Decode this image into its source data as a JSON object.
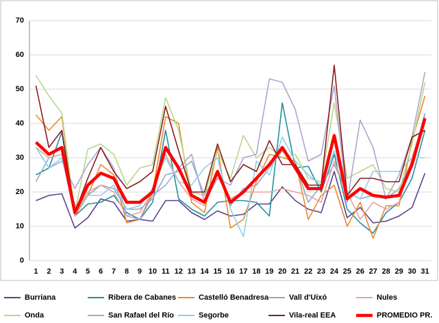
{
  "chart_data": {
    "type": "line",
    "categories": [
      "1",
      "2",
      "3",
      "4",
      "5",
      "6",
      "7",
      "8",
      "9",
      "10",
      "11",
      "12",
      "13",
      "14",
      "15",
      "16",
      "17",
      "18",
      "19",
      "20",
      "21",
      "22",
      "23",
      "24",
      "25",
      "26",
      "27",
      "28",
      "29",
      "30",
      "31"
    ],
    "ylim": [
      0,
      70
    ],
    "yticks": [
      0,
      10,
      20,
      30,
      40,
      50,
      60,
      70
    ],
    "grid": true,
    "series": [
      {
        "name": "Burriana",
        "color": "#5b3f8c",
        "values": [
          17.5,
          19,
          19.5,
          9.5,
          12.5,
          18,
          17,
          11.5,
          12,
          11.5,
          17.5,
          17.5,
          14,
          12,
          14.5,
          13,
          13.5,
          16.5,
          16.5,
          21.5,
          17.5,
          15,
          14,
          26,
          12.5,
          15.5,
          11,
          11.5,
          13,
          15.5,
          25.5
        ]
      },
      {
        "name": "Ribera de Cabanes",
        "color": "#1f8fa0",
        "values": [
          25,
          27,
          37.5,
          13,
          16.5,
          17,
          19,
          14,
          12,
          17,
          38,
          18,
          15,
          13,
          17,
          17.5,
          17.5,
          17,
          13,
          46,
          27,
          27.5,
          20,
          31,
          15,
          11,
          8,
          14,
          17,
          24,
          38
        ]
      },
      {
        "name": "Castelló Benadresa",
        "color": "#e8892b",
        "values": [
          42.5,
          38,
          42,
          13,
          19,
          28,
          25,
          11,
          12,
          20,
          42,
          40,
          17,
          14,
          33,
          9.5,
          12,
          23,
          31,
          30,
          29,
          12,
          19,
          22,
          10,
          17,
          6.5,
          16,
          16,
          35,
          48
        ]
      },
      {
        "name": "Vall d'Uixó",
        "color": "#8ea9c8",
        "values": [
          23,
          30,
          31,
          16,
          19,
          22,
          21,
          15,
          15,
          18,
          25,
          26,
          29,
          19,
          26,
          16,
          21,
          22,
          27,
          32,
          28,
          17,
          22,
          28,
          20,
          18,
          19,
          18,
          21,
          29,
          43
        ]
      },
      {
        "name": "Nules",
        "color": "#e8a29c",
        "values": [
          33,
          30,
          31,
          13,
          20,
          22,
          20,
          13,
          14,
          20,
          31,
          23,
          18,
          16,
          25,
          18,
          20,
          20,
          20,
          21,
          20,
          19,
          17,
          29,
          20,
          12,
          17,
          15,
          17,
          30,
          42
        ]
      },
      {
        "name": "Onda",
        "color": "#b5d88a",
        "values": [
          54,
          48,
          43,
          14,
          32.5,
          34,
          31,
          22,
          27,
          28,
          47.5,
          38,
          20,
          19,
          32,
          24,
          36.5,
          30,
          33,
          30,
          31,
          24,
          23,
          46,
          24,
          26,
          28,
          21,
          20,
          34,
          52
        ]
      },
      {
        "name": "San Rafael del Río",
        "color": "#b0a4d0",
        "values": [
          33,
          27,
          29,
          21,
          28,
          33,
          27,
          13,
          12,
          19,
          22,
          27,
          31,
          17,
          24,
          22,
          30,
          31,
          53,
          52,
          44,
          29,
          31,
          51,
          17,
          41,
          33,
          18,
          25,
          36,
          55
        ]
      },
      {
        "name": "Segorbe",
        "color": "#8fcfe8",
        "values": [
          33,
          27,
          30,
          14,
          19,
          19,
          22,
          15,
          16,
          21,
          30,
          23,
          22,
          27,
          30,
          15,
          7,
          29,
          25,
          36,
          29,
          25,
          22,
          32,
          20,
          18,
          26,
          26,
          26,
          30,
          30
        ]
      },
      {
        "name": "Vila-real EEA",
        "color": "#8b1a1a",
        "values": [
          51,
          33,
          38,
          14,
          24,
          33,
          26,
          21,
          23,
          26,
          45,
          32,
          20,
          20,
          34,
          23,
          28,
          26,
          35,
          28,
          28,
          22,
          22,
          57,
          19,
          24,
          24,
          23,
          23,
          36,
          38
        ]
      },
      {
        "name": "PROMEDIO PR.",
        "color": "#ff0000",
        "values": [
          34.5,
          31,
          33,
          14,
          22,
          25.5,
          24,
          17,
          17,
          20,
          33,
          27,
          19,
          17,
          26,
          17,
          20,
          24,
          28,
          33,
          27,
          21,
          21,
          36.5,
          18,
          21,
          19,
          18.5,
          19,
          28,
          41.5
        ]
      }
    ]
  }
}
